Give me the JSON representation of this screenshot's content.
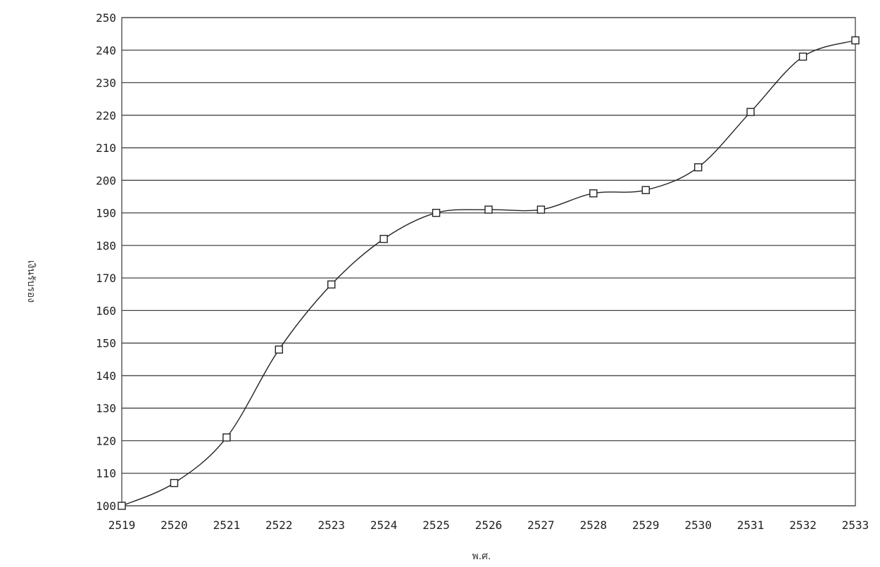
{
  "chart_data": {
    "type": "line",
    "title": "",
    "xlabel": "พ.ศ.",
    "ylabel": "เงินรับรอง",
    "x": [
      "2519",
      "2520",
      "2521",
      "2522",
      "2523",
      "2524",
      "2525",
      "2526",
      "2527",
      "2528",
      "2529",
      "2530",
      "2531",
      "2532",
      "2533"
    ],
    "series": [
      {
        "values": [
          100,
          107,
          121,
          148,
          168,
          182,
          190,
          191,
          191,
          196,
          197,
          204,
          221,
          238,
          243
        ]
      }
    ],
    "ylim": [
      100,
      250
    ],
    "yticks": [
      100,
      110,
      120,
      130,
      140,
      150,
      160,
      170,
      180,
      190,
      200,
      210,
      220,
      230,
      240,
      250
    ],
    "grid": true,
    "marker": "square",
    "legend": "none",
    "colors": {
      "line": "#222222",
      "grid": "#444444"
    }
  }
}
